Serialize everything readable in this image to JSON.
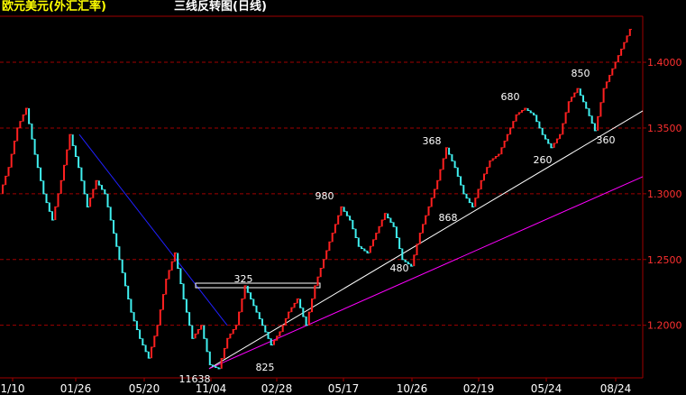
{
  "header": {
    "instrument": "欧元美元(外汇汇率)",
    "chart_title": "三线反转图(日线)"
  },
  "colors": {
    "up": "#ff2020",
    "down": "#40f0f0",
    "grid": "#a00000",
    "axis": "#a00000",
    "price_label": "#ff3030",
    "date_label": "#ffffff",
    "trend_down_line": "#2020ff",
    "trend_up_line": "#ffffff",
    "channel_line": "#ff00ff",
    "annotation": "#ffffff"
  },
  "chart_data": {
    "type": "line",
    "subtype": "three-line-break",
    "ylim": [
      1.16,
      1.435
    ],
    "y_ticks": [
      "1.4000",
      "1.3500",
      "1.3000",
      "1.2500",
      "1.2000"
    ],
    "x_tick_labels": [
      "1/10",
      "01/26",
      "05/20",
      "11/04",
      "02/28",
      "05/17",
      "10/26",
      "02/19",
      "05/24",
      "08/24"
    ],
    "grid": true,
    "series": [
      {
        "values": [
          1.3,
          1.32,
          1.35,
          1.365,
          1.33,
          1.3,
          1.28,
          1.31,
          1.345,
          1.32,
          1.29,
          1.31,
          1.3,
          1.27,
          1.24,
          1.21,
          1.19,
          1.175,
          1.2,
          1.235,
          1.255,
          1.22,
          1.19,
          1.2,
          1.17,
          1.167,
          1.19,
          1.2,
          1.23,
          1.215,
          1.2,
          1.185,
          1.195,
          1.21,
          1.22,
          1.2,
          1.23,
          1.25,
          1.27,
          1.29,
          1.28,
          1.26,
          1.255,
          1.27,
          1.285,
          1.275,
          1.25,
          1.245,
          1.27,
          1.29,
          1.31,
          1.335,
          1.32,
          1.3,
          1.29,
          1.31,
          1.325,
          1.33,
          1.345,
          1.36,
          1.365,
          1.36,
          1.345,
          1.335,
          1.345,
          1.37,
          1.38,
          1.365,
          1.348,
          1.38,
          1.395,
          1.41,
          1.425
        ]
      }
    ],
    "annotations": [
      "325",
      "980",
      "368",
      "680",
      "850",
      "260",
      "360",
      "868",
      "480",
      "825",
      "11638"
    ],
    "lines": [
      "downtrend line from 01/26 high to 11/04 low",
      "uptrend support line from 11/04 low",
      "parallel channel line from 11/04 low",
      "horizontal box at 325"
    ]
  }
}
